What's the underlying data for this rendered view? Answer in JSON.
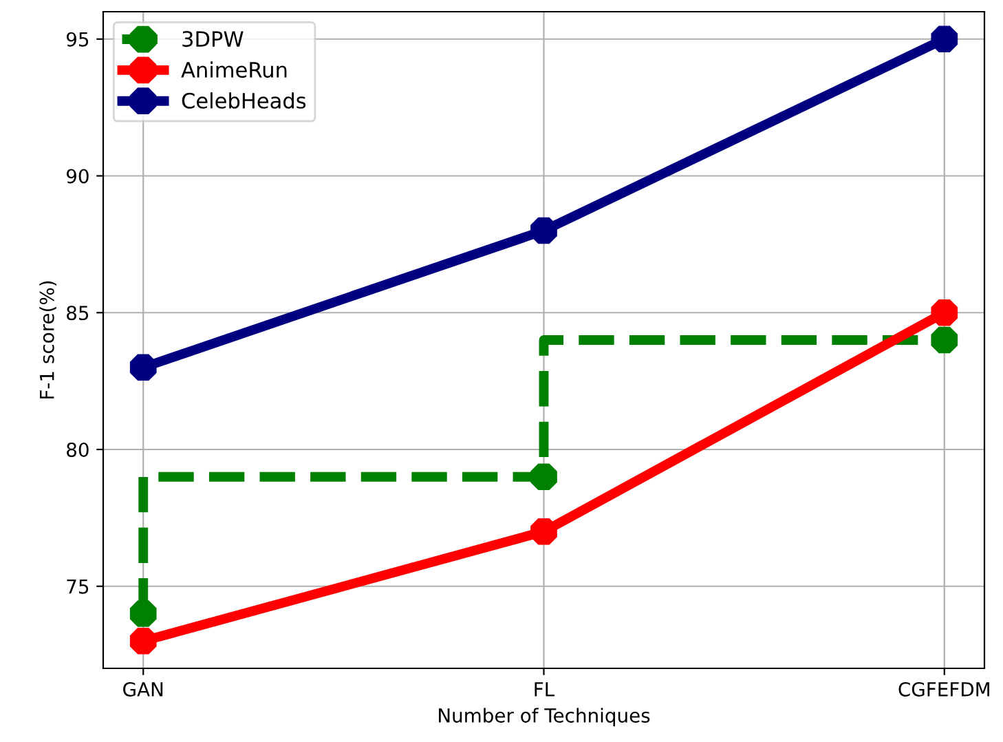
{
  "chart_data": {
    "type": "line",
    "xlabel": "Number of Techniques",
    "ylabel": "F-1 score(%)",
    "categories": [
      "GAN",
      "FL",
      "CGFEFDM"
    ],
    "series": [
      {
        "name": "3DPW",
        "type": "step",
        "color": "#008000",
        "line_style": "dashed",
        "values": [
          74,
          79,
          84
        ]
      },
      {
        "name": "AnimeRun",
        "color": "#ff0000",
        "values": [
          73,
          77,
          85
        ]
      },
      {
        "name": "CelebHeads",
        "color": "#000080",
        "values": [
          83,
          88,
          95
        ]
      }
    ],
    "ylim": [
      72,
      96
    ],
    "yticks": [
      75,
      80,
      85,
      90,
      95
    ],
    "grid": true,
    "legend": "top left",
    "marker": "circle"
  }
}
